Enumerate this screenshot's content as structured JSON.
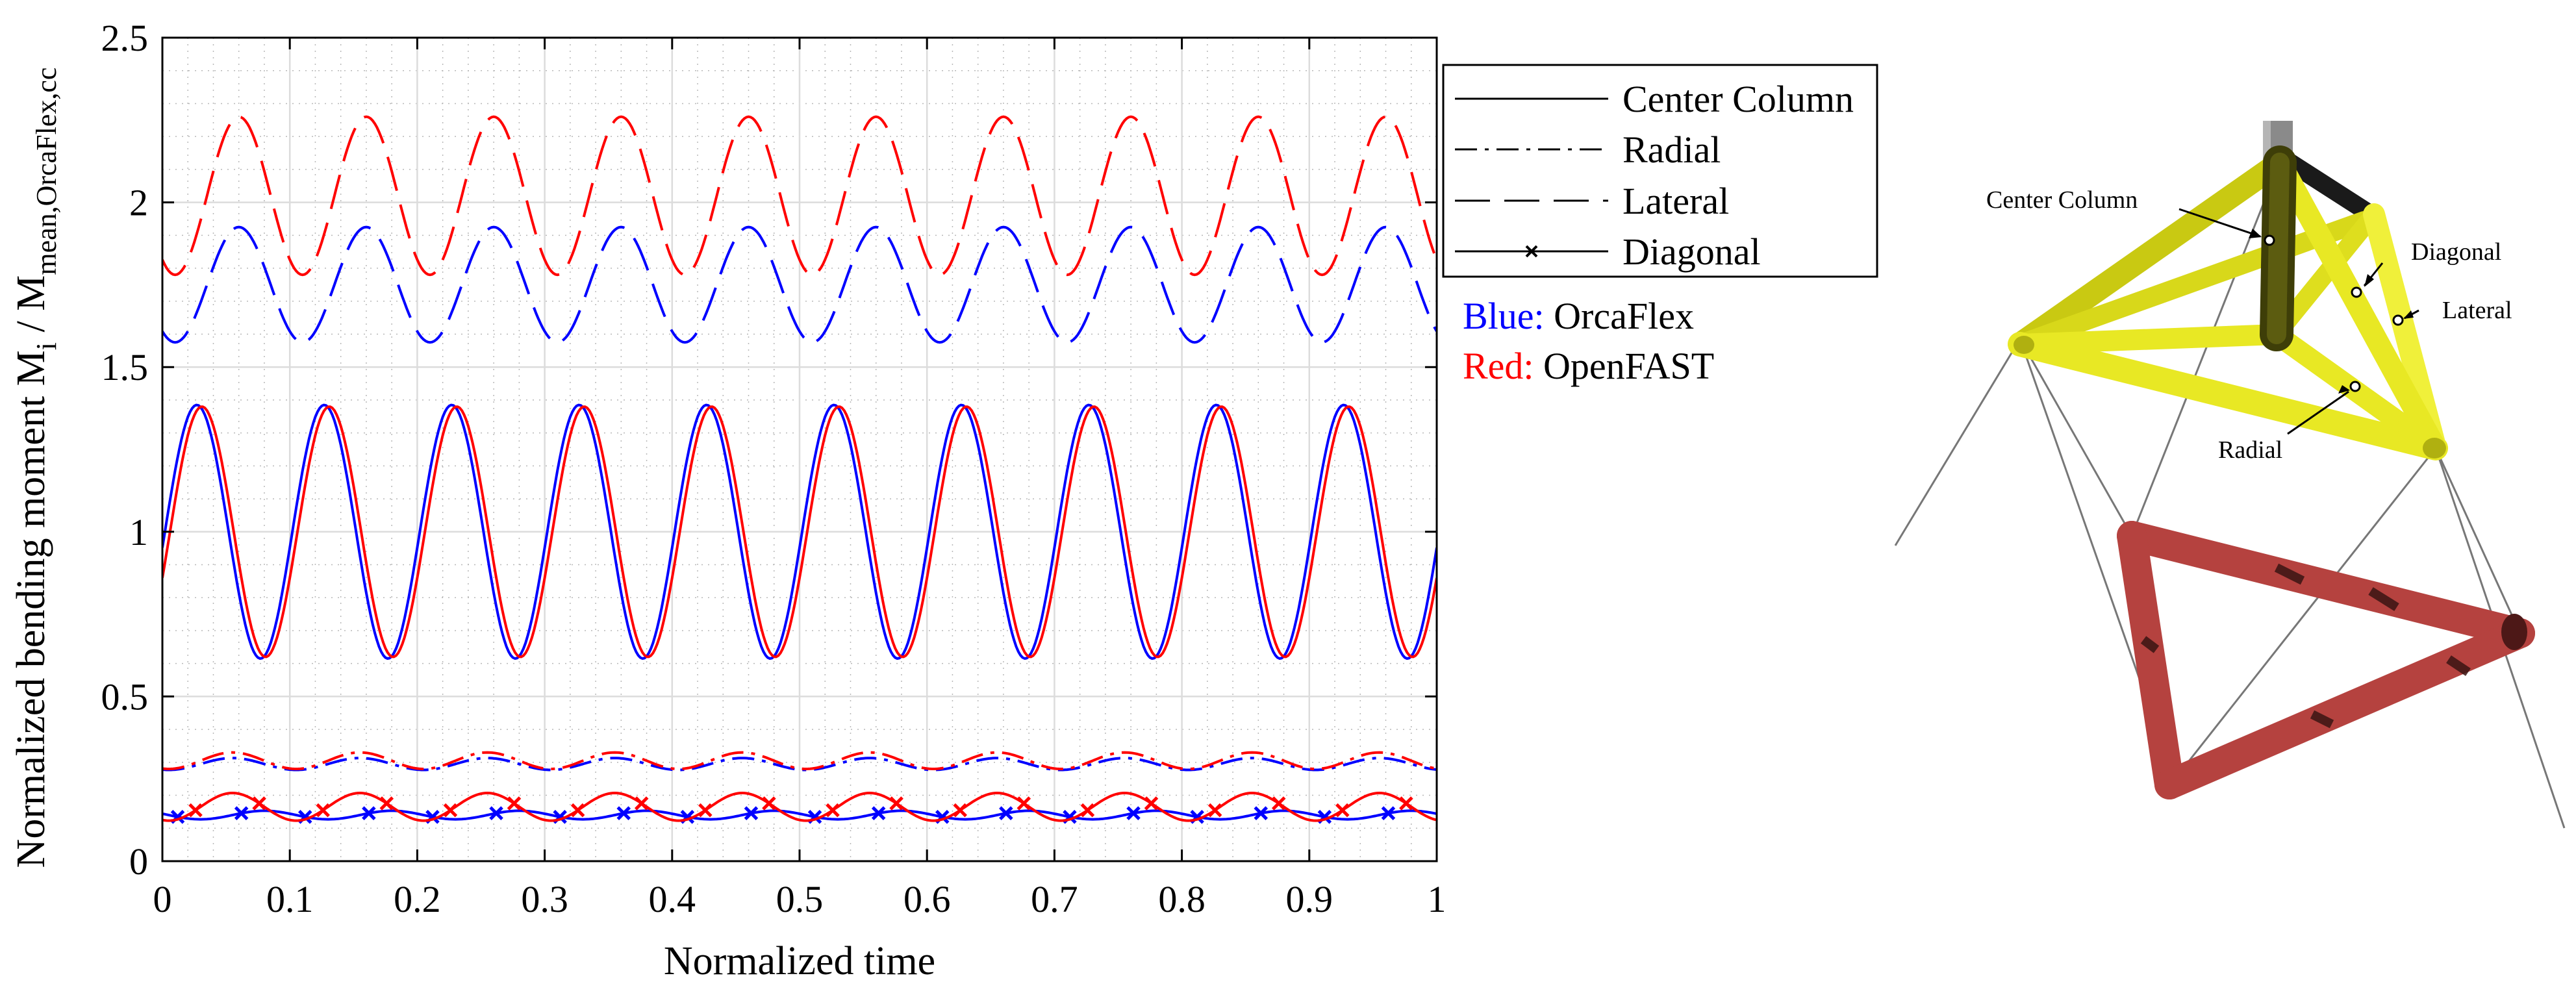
{
  "chart_data": {
    "type": "line",
    "xlabel": "Normalized time",
    "ylabel_main": "Normalized bending moment M",
    "ylabel_sub_i": "i",
    "ylabel_sep": " / M",
    "ylabel_sub_mean": "mean,OrcaFlex,cc",
    "xlim": [
      0,
      1
    ],
    "ylim": [
      0,
      2.5
    ],
    "xticks": [
      "0",
      "0.1",
      "0.2",
      "0.3",
      "0.4",
      "0.5",
      "0.6",
      "0.7",
      "0.8",
      "0.9",
      "1"
    ],
    "yticks": [
      "0",
      "0.5",
      "1",
      "1.5",
      "2",
      "2.5"
    ],
    "grid": true,
    "legend_position": "outside-right",
    "series": [
      {
        "name": "Center Column",
        "tool": "OrcaFlex",
        "color": "#0000ff",
        "style": "solid",
        "mean": 1.0,
        "amplitude": 0.385,
        "period": 0.1,
        "phase_peak": 0.027
      },
      {
        "name": "Center Column",
        "tool": "OpenFAST",
        "color": "#ff0000",
        "style": "solid",
        "mean": 1.0,
        "amplitude": 0.38,
        "period": 0.1,
        "phase_peak": 0.031
      },
      {
        "name": "Radial",
        "tool": "OrcaFlex",
        "color": "#0000ff",
        "style": "dashdot",
        "mean": 0.295,
        "amplitude": 0.018,
        "period": 0.1,
        "phase_peak": 0.055
      },
      {
        "name": "Radial",
        "tool": "OpenFAST",
        "color": "#ff0000",
        "style": "dashdot",
        "mean": 0.305,
        "amplitude": 0.025,
        "period": 0.1,
        "phase_peak": 0.055
      },
      {
        "name": "Lateral",
        "tool": "OrcaFlex",
        "color": "#0000ff",
        "style": "dashed",
        "mean": 1.75,
        "amplitude": 0.175,
        "period": 0.1,
        "phase_peak": 0.06
      },
      {
        "name": "Lateral",
        "tool": "OpenFAST",
        "color": "#ff0000",
        "style": "dashed",
        "mean": 2.02,
        "amplitude": 0.24,
        "period": 0.1,
        "phase_peak": 0.06
      },
      {
        "name": "Diagonal",
        "tool": "OrcaFlex",
        "color": "#0000ff",
        "style": "solid-x",
        "mean": 0.14,
        "amplitude": 0.013,
        "period": 0.1,
        "phase_peak": 0.08
      },
      {
        "name": "Diagonal",
        "tool": "OpenFAST",
        "color": "#ff0000",
        "style": "solid-x",
        "mean": 0.165,
        "amplitude": 0.042,
        "period": 0.1,
        "phase_peak": 0.055
      }
    ]
  },
  "legend": {
    "items": [
      "Center Column",
      "Radial",
      "Lateral",
      "Diagonal"
    ],
    "blue_key": "Blue:",
    "blue_value": "OrcaFlex",
    "red_key": "Red:",
    "red_value": "OpenFAST"
  },
  "diagram": {
    "labels": {
      "center_column": "Center Column",
      "diagonal": "Diagonal",
      "lateral": "Lateral",
      "radial": "Radial"
    },
    "colors": {
      "upper_frame": "#e8e824",
      "lower_frame": "#b5423f",
      "tower": "#8a8a8a"
    }
  }
}
